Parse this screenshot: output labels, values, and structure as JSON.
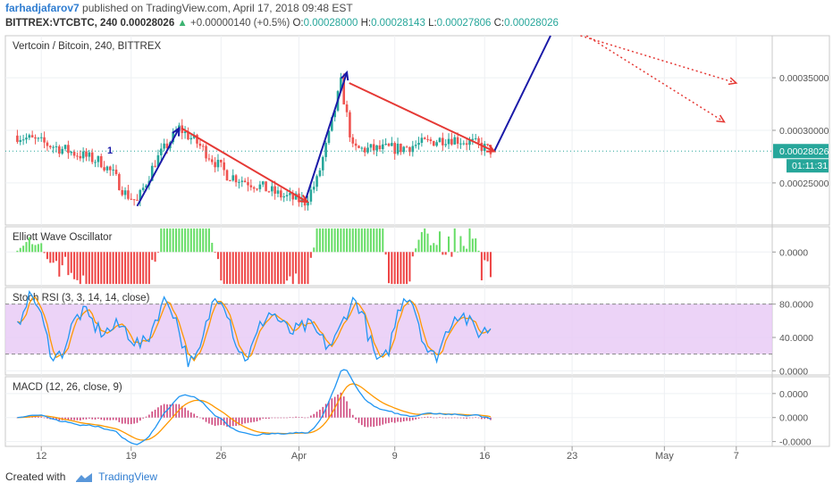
{
  "header": {
    "author": "farhadjafarov7",
    "published_text": "published on TradingView.com, April 17, 2018 09:48 EST",
    "symbol": "BITTREX:VTCBTC, 240",
    "last": "0.00028026",
    "change": "+0.00000140 (+0.5%)",
    "o_label": "O:",
    "o_value": "0.00028000",
    "h_label": "H:",
    "h_value": "0.00028143",
    "l_label": "L:",
    "l_value": "0.00027806",
    "c_label": "C:",
    "c_value": "0.00028026"
  },
  "footer": {
    "created_with": "Created with",
    "brand": "TradingView"
  },
  "colors": {
    "up": "#26a69a",
    "down": "#ef5350",
    "wave_up": "#1a1aa8",
    "wave_down": "#e53935",
    "osc_up": "#66dd66",
    "osc_down": "#ee4444",
    "stoch_k": "#2196f3",
    "stoch_d": "#ff9800",
    "stoch_band": "#e7c8f5",
    "price_tag": "#26a69a"
  },
  "chart_data": [
    {
      "type": "candlestick",
      "title": "Vertcoin / Bitcoin, 240, BITTREX",
      "ylim": [
        0.00021,
        0.00039
      ],
      "yticks": [
        "0.00035000",
        "0.00030000",
        "0.00025000"
      ],
      "ytick_values": [
        0.00035,
        0.0003,
        0.00025
      ],
      "last_price_label": "0.00028026",
      "countdown_label": "01:11:31",
      "annotations": [
        "1"
      ],
      "keypoints": [
        {
          "x": 0,
          "y": 0.000295
        },
        {
          "x": 3,
          "y": 0.000285
        },
        {
          "x": 7,
          "y": 0.00027
        },
        {
          "x": 8,
          "y": 0.000258
        },
        {
          "x": 9,
          "y": 0.00024
        },
        {
          "x": 10,
          "y": 0.000232
        },
        {
          "x": 11.5,
          "y": 0.00027
        },
        {
          "x": 13.5,
          "y": 0.000302
        },
        {
          "x": 15,
          "y": 0.000288
        },
        {
          "x": 17.5,
          "y": 0.000258
        },
        {
          "x": 20,
          "y": 0.000248
        },
        {
          "x": 22,
          "y": 0.000238
        },
        {
          "x": 24,
          "y": 0.000232
        },
        {
          "x": 25,
          "y": 0.000252
        },
        {
          "x": 26,
          "y": 0.000295
        },
        {
          "x": 27,
          "y": 0.000345
        },
        {
          "x": 28,
          "y": 0.000282
        },
        {
          "x": 30,
          "y": 0.000282
        },
        {
          "x": 32,
          "y": 0.000283
        },
        {
          "x": 34,
          "y": 0.000288
        },
        {
          "x": 36,
          "y": 0.000293
        },
        {
          "x": 38,
          "y": 0.000288
        },
        {
          "x": 39.6,
          "y": 0.0002805
        }
      ],
      "wave_up": [
        [
          {
            "x": 10,
            "y": 0.000228
          },
          {
            "x": 13.5,
            "y": 0.000302
          }
        ],
        [
          {
            "x": 24,
            "y": 0.000232
          },
          {
            "x": 27.5,
            "y": 0.000355
          }
        ],
        [
          {
            "x": 39.8,
            "y": 0.00028
          },
          {
            "x": 44.5,
            "y": 0.00039
          }
        ]
      ],
      "wave_down": [
        [
          {
            "x": 13.7,
            "y": 0.000302
          },
          {
            "x": 24.2,
            "y": 0.000232
          }
        ],
        [
          {
            "x": 27.7,
            "y": 0.000345
          },
          {
            "x": 39.8,
            "y": 0.00028
          }
        ]
      ],
      "projection": [
        [
          {
            "x": 47,
            "y": 0.00039
          },
          {
            "x": 60,
            "y": 0.000345
          }
        ],
        [
          {
            "x": 47.5,
            "y": 0.00039
          },
          {
            "x": 59,
            "y": 0.000308
          }
        ]
      ]
    },
    {
      "type": "bar",
      "title": "Elliott Wave Oscillator",
      "ylim": [
        -4e-06,
        3e-06
      ],
      "yticks": [
        "0.0000"
      ],
      "ytick_values": [
        0
      ]
    },
    {
      "type": "line",
      "title": "Stoch RSI (3, 3, 14, 14, close)",
      "ylim": [
        -5,
        100
      ],
      "yticks": [
        "80.0000",
        "40.0000",
        "0.0000"
      ],
      "ytick_values": [
        80,
        40,
        0
      ],
      "band": [
        20,
        80
      ]
    },
    {
      "type": "line",
      "title": "MACD (12, 26, close, 9)",
      "ylim": [
        -1.2e-05,
        1.7e-05
      ],
      "yticks": [
        "0.0000",
        "0.0000",
        "-0.0000"
      ],
      "ytick_values": [
        1e-05,
        0,
        -1e-05
      ]
    }
  ],
  "x_axis": {
    "ticks": [
      {
        "x": 2,
        "label": "12"
      },
      {
        "x": 9.5,
        "label": "19"
      },
      {
        "x": 17,
        "label": "26"
      },
      {
        "x": 23.5,
        "label": "Apr"
      },
      {
        "x": 31.5,
        "label": "9"
      },
      {
        "x": 39,
        "label": "16"
      },
      {
        "x": 46.3,
        "label": "23"
      },
      {
        "x": 54,
        "label": "May"
      },
      {
        "x": 60,
        "label": "7"
      }
    ]
  }
}
